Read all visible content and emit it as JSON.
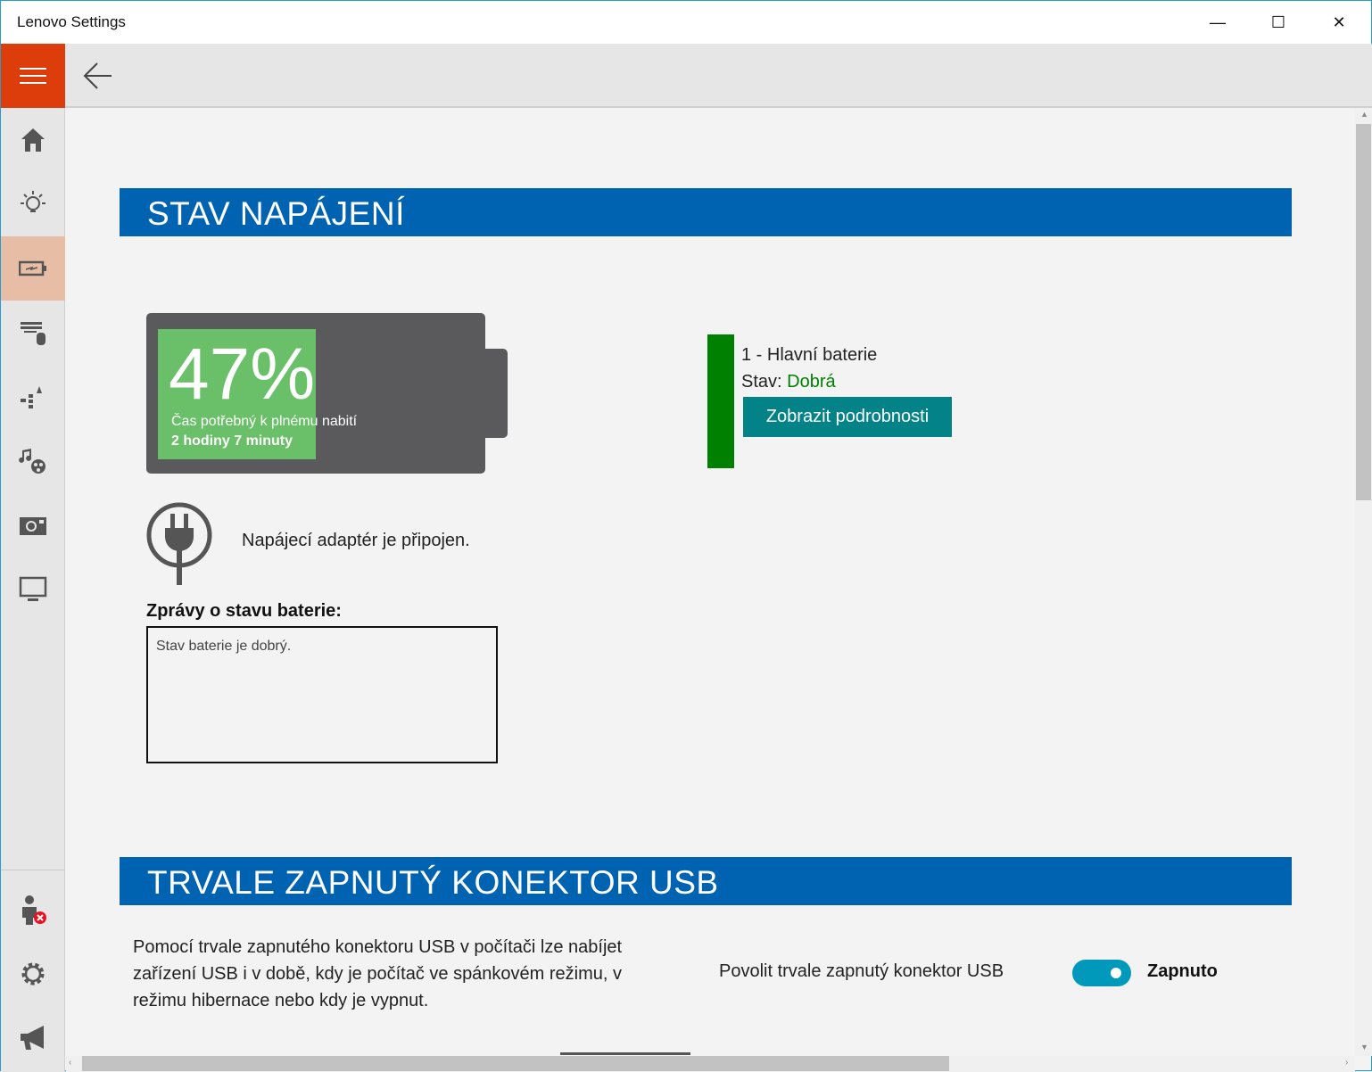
{
  "window": {
    "title": "Lenovo Settings",
    "minimize": "—",
    "maximize": "☐",
    "close": "✕"
  },
  "sidebar": {
    "items": [
      {
        "icon": "home-icon"
      },
      {
        "icon": "lightbulb-icon"
      },
      {
        "icon": "battery-icon",
        "active": true
      },
      {
        "icon": "keyboard-mouse-icon"
      },
      {
        "icon": "network-icon"
      },
      {
        "icon": "media-icon"
      },
      {
        "icon": "camera-icon"
      },
      {
        "icon": "display-icon"
      }
    ],
    "bottom": [
      {
        "icon": "user-error-icon"
      },
      {
        "icon": "gear-icon"
      },
      {
        "icon": "megaphone-icon"
      }
    ]
  },
  "power": {
    "header": "STAV NAPÁJENÍ",
    "percent": "47%",
    "charge_level": 47,
    "time_label": "Čas potřebný k plnému nabití",
    "time_value": "2 hodiny 7 minuty",
    "adapter": "Napájecí adaptér je připojen.",
    "messages_label": "Zprávy o stavu baterie:",
    "messages": "Stav baterie je dobrý.",
    "battery_name": "1 - Hlavní baterie",
    "status_label": "Stav:",
    "status_value": "Dobrá",
    "details_button": "Zobrazit podrobnosti",
    "colors": {
      "fill": "#6abf69",
      "status": "#008000",
      "button": "#038387"
    }
  },
  "usb": {
    "header": "TRVALE ZAPNUTÝ KONEKTOR USB",
    "description": "Pomocí trvale zapnutého konektoru USB v počítači lze nabíjet zařízení USB i v době, kdy je počítač ve spánkovém režimu, v režimu hibernace nebo kdy je vypnut.",
    "toggle_label": "Povolit trvale zapnutý konektor USB",
    "toggle_state": "Zapnuto",
    "toggle_on": true
  }
}
